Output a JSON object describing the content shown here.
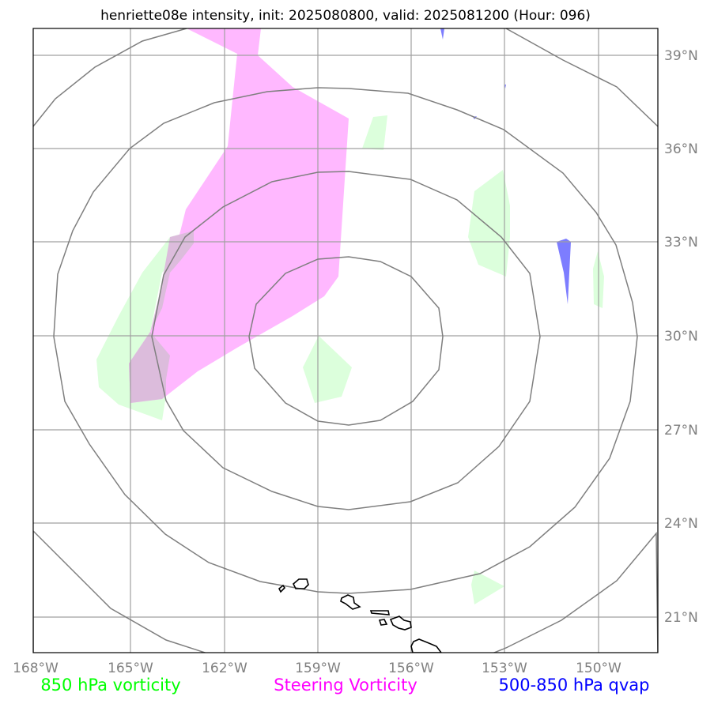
{
  "title": "henriette08e intensity, init: 2025080800, valid: 2025081200 (Hour: 096)",
  "map": {
    "lon_ticks": [
      "168°W",
      "165°W",
      "162°W",
      "159°W",
      "156°W",
      "153°W",
      "150°W"
    ],
    "lat_ticks": [
      "39°N",
      "36°N",
      "33°N",
      "30°N",
      "27°N",
      "24°N",
      "21°N"
    ]
  },
  "legend": [
    {
      "label": "850 hPa vorticity",
      "color": "#00ff00"
    },
    {
      "label": "Steering Vorticity",
      "color": "#ff00ff"
    },
    {
      "label": "500-850 hPa qvap",
      "color": "#0000ff"
    }
  ],
  "colors": {
    "vort850_fill": "#dcffdc",
    "steering_fill": "#ffb8ff",
    "overlap_fill": "#dcbcdc",
    "qvap_fill": "#7d7dff",
    "grid": "#a0a0a0",
    "rings": "#7f7f7f",
    "coast": "#000000"
  }
}
